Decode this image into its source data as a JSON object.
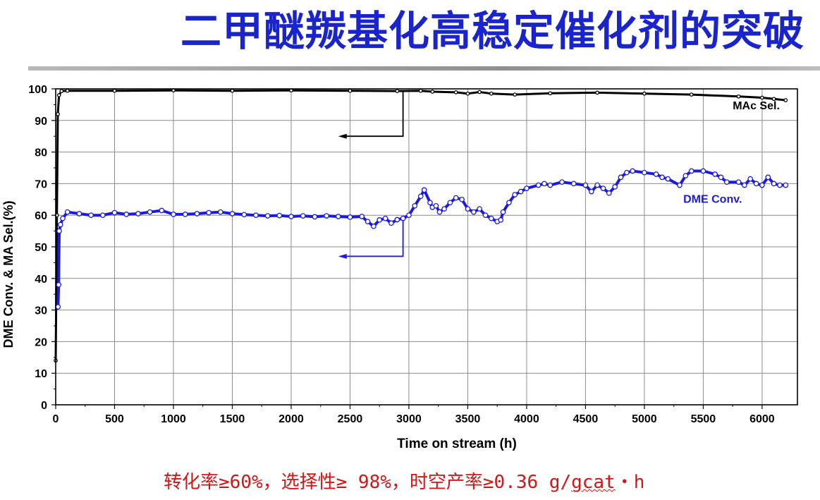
{
  "title": "二甲醚羰基化高稳定催化剂的突破",
  "caption": {
    "main": "转化率≥60%，选择性≥ 98%，时空产率≥0.36 g/",
    "unit": "gcat",
    "tail": "・h"
  },
  "colors": {
    "title": "#1a24cc",
    "caption": "#d41515",
    "sel_series": "#000000",
    "conv_series": "#1a1ae0"
  },
  "chart_data": {
    "type": "scatter",
    "xlabel": "Time on stream (h)",
    "ylabel": "DME Conv. & MA Sel.(%)",
    "xlim": [
      0,
      6300
    ],
    "ylim": [
      0,
      100
    ],
    "xticks": [
      0,
      500,
      1000,
      1500,
      2000,
      2500,
      3000,
      3500,
      4000,
      4500,
      5000,
      5500,
      6000
    ],
    "yticks": [
      0,
      10,
      20,
      30,
      40,
      50,
      60,
      70,
      80,
      90,
      100
    ],
    "grid": true,
    "series": [
      {
        "name": "MAc Sel.",
        "color": "#000000",
        "points": [
          [
            0,
            14
          ],
          [
            10,
            60
          ],
          [
            18,
            92
          ],
          [
            28,
            98
          ],
          [
            50,
            99.3
          ],
          [
            100,
            99.4
          ],
          [
            500,
            99.4
          ],
          [
            1000,
            99.5
          ],
          [
            1500,
            99.4
          ],
          [
            2000,
            99.5
          ],
          [
            2500,
            99.4
          ],
          [
            2900,
            99.3
          ],
          [
            3100,
            99.4
          ],
          [
            3200,
            99.1
          ],
          [
            3400,
            98.9
          ],
          [
            3500,
            98.5
          ],
          [
            3600,
            99
          ],
          [
            3700,
            98.5
          ],
          [
            3900,
            98.2
          ],
          [
            4200,
            98.6
          ],
          [
            4600,
            98.8
          ],
          [
            5000,
            98.5
          ],
          [
            5400,
            98.2
          ],
          [
            5800,
            97.6
          ],
          [
            6000,
            97.2
          ],
          [
            6100,
            96.8
          ],
          [
            6200,
            96.4
          ]
        ]
      },
      {
        "name": "DME  Conv.",
        "color": "#1a1ae0",
        "points": [
          [
            20,
            31
          ],
          [
            25,
            38
          ],
          [
            30,
            55
          ],
          [
            40,
            57
          ],
          [
            60,
            59
          ],
          [
            100,
            61
          ],
          [
            200,
            60.5
          ],
          [
            300,
            60
          ],
          [
            400,
            60
          ],
          [
            500,
            60.8
          ],
          [
            600,
            60.3
          ],
          [
            700,
            60.5
          ],
          [
            800,
            61
          ],
          [
            900,
            61.5
          ],
          [
            1000,
            60.3
          ],
          [
            1100,
            60.3
          ],
          [
            1200,
            60.5
          ],
          [
            1300,
            60.8
          ],
          [
            1400,
            61
          ],
          [
            1500,
            60.5
          ],
          [
            1600,
            60.2
          ],
          [
            1700,
            60
          ],
          [
            1800,
            59.8
          ],
          [
            1900,
            59.9
          ],
          [
            2000,
            59.6
          ],
          [
            2100,
            59.8
          ],
          [
            2200,
            59.5
          ],
          [
            2300,
            59.8
          ],
          [
            2400,
            59.6
          ],
          [
            2500,
            59.4
          ],
          [
            2600,
            59.6
          ],
          [
            2650,
            58
          ],
          [
            2700,
            56.5
          ],
          [
            2750,
            58.5
          ],
          [
            2800,
            59
          ],
          [
            2850,
            57.5
          ],
          [
            2900,
            58.6
          ],
          [
            2950,
            59
          ],
          [
            3000,
            60
          ],
          [
            3050,
            63
          ],
          [
            3100,
            66
          ],
          [
            3130,
            68
          ],
          [
            3180,
            64
          ],
          [
            3200,
            62.5
          ],
          [
            3230,
            63
          ],
          [
            3260,
            61
          ],
          [
            3300,
            62
          ],
          [
            3350,
            64
          ],
          [
            3400,
            65.5
          ],
          [
            3450,
            65
          ],
          [
            3500,
            62
          ],
          [
            3550,
            61
          ],
          [
            3600,
            62
          ],
          [
            3650,
            60
          ],
          [
            3700,
            59
          ],
          [
            3750,
            58
          ],
          [
            3780,
            58.5
          ],
          [
            3800,
            61
          ],
          [
            3850,
            64
          ],
          [
            3900,
            66.5
          ],
          [
            3950,
            67.5
          ],
          [
            4000,
            68.5
          ],
          [
            4100,
            69.5
          ],
          [
            4150,
            70
          ],
          [
            4200,
            69.5
          ],
          [
            4300,
            70.5
          ],
          [
            4400,
            70
          ],
          [
            4500,
            69.5
          ],
          [
            4550,
            67.5
          ],
          [
            4600,
            69.5
          ],
          [
            4650,
            68.5
          ],
          [
            4700,
            67
          ],
          [
            4750,
            69
          ],
          [
            4800,
            72
          ],
          [
            4850,
            73.5
          ],
          [
            4900,
            74
          ],
          [
            5000,
            73.5
          ],
          [
            5100,
            73
          ],
          [
            5150,
            72
          ],
          [
            5200,
            71.5
          ],
          [
            5300,
            69.5
          ],
          [
            5350,
            72.5
          ],
          [
            5400,
            74
          ],
          [
            5500,
            74
          ],
          [
            5600,
            73
          ],
          [
            5650,
            72
          ],
          [
            5700,
            70.5
          ],
          [
            5800,
            70.5
          ],
          [
            5850,
            69.5
          ],
          [
            5900,
            71.5
          ],
          [
            5950,
            70
          ],
          [
            6000,
            69.5
          ],
          [
            6050,
            72
          ],
          [
            6100,
            70
          ],
          [
            6150,
            69.5
          ],
          [
            6200,
            69.5
          ]
        ]
      }
    ],
    "annotations": [
      {
        "text": "MAc Sel.",
        "x": 5950,
        "y": 93.5,
        "color": "#000000"
      },
      {
        "text": "DME  Conv.",
        "x": 5580,
        "y": 64,
        "color": "#1a1ae0"
      }
    ],
    "axis_arrows": [
      {
        "from_x": 2950,
        "from_y": 99.4,
        "corner_y": 85,
        "to_x": 2400,
        "color": "#000000"
      },
      {
        "from_x": 2950,
        "from_y": 58.5,
        "corner_y": 47,
        "to_x": 2400,
        "color": "#1a1ae0"
      }
    ]
  }
}
